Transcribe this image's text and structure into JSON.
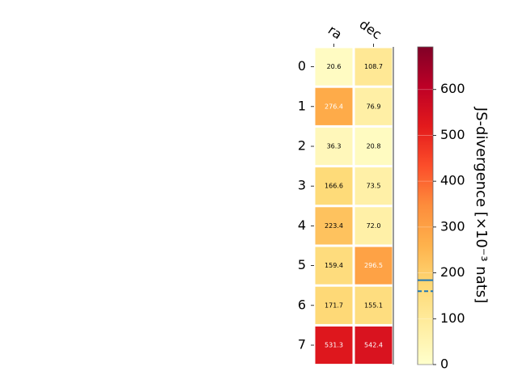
{
  "chart_data": {
    "type": "heatmap",
    "columns": [
      "ra",
      "dec"
    ],
    "rows": [
      "0",
      "1",
      "2",
      "3",
      "4",
      "5",
      "6",
      "7"
    ],
    "values": [
      [
        20.6,
        108.7
      ],
      [
        276.4,
        76.9
      ],
      [
        36.3,
        20.8
      ],
      [
        166.6,
        73.5
      ],
      [
        223.4,
        72.0
      ],
      [
        159.4,
        296.5
      ],
      [
        171.7,
        155.1
      ],
      [
        531.3,
        542.4
      ]
    ],
    "value_labels": [
      [
        "20.6",
        "108.7"
      ],
      [
        "276.4",
        "76.9"
      ],
      [
        "36.3",
        "20.8"
      ],
      [
        "166.6",
        "73.5"
      ],
      [
        "223.4",
        "72.0"
      ],
      [
        "159.4",
        "296.5"
      ],
      [
        "171.7",
        "155.1"
      ],
      [
        "531.3",
        "542.4"
      ]
    ],
    "colorbar": {
      "label": "JS-divergence [×10⁻³ nats]",
      "range": [
        0,
        693
      ],
      "ticks": [
        0,
        100,
        200,
        300,
        400,
        500,
        600
      ],
      "tick_labels": [
        "0",
        "100",
        "200",
        "300",
        "400",
        "500",
        "600"
      ],
      "colormap": "YlOrRd",
      "reference_lines": [
        {
          "value": 184,
          "style": "solid",
          "color": "#1f77b4"
        },
        {
          "value": 160,
          "style": "dashed",
          "color": "#1f77b4"
        }
      ]
    }
  }
}
